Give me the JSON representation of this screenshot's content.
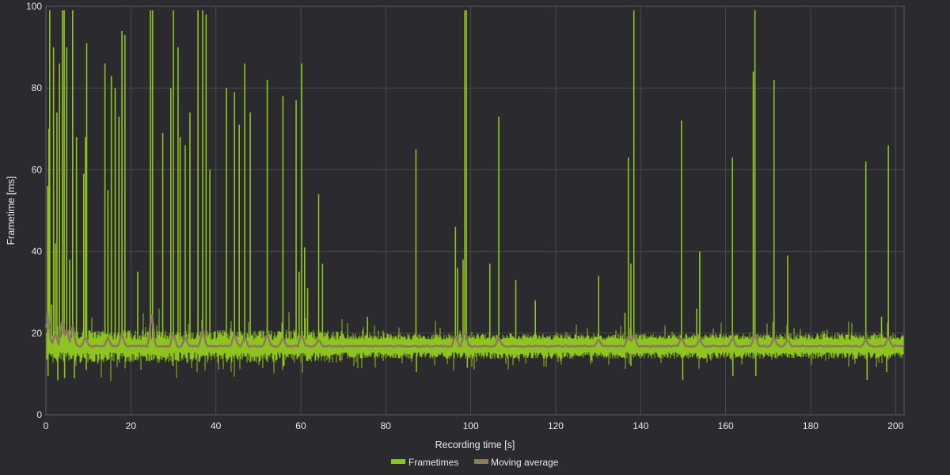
{
  "chart_data": {
    "type": "line",
    "xlabel": "Recording time [s]",
    "ylabel": "Frametime [ms]",
    "xlim": [
      0,
      202
    ],
    "ylim": [
      0,
      100
    ],
    "xticks": [
      0,
      20,
      40,
      60,
      80,
      100,
      120,
      140,
      160,
      180,
      200
    ],
    "yticks": [
      0,
      20,
      40,
      60,
      80,
      100
    ],
    "grid": true,
    "legend_position": "bottom-center",
    "colors": {
      "background": "#2b2b2f",
      "grid": "#4a4a4f",
      "frametimes": "#8fc31f",
      "moving_average": "#8b7a62",
      "text": "#e8e8e8"
    },
    "series": [
      {
        "name": "Frametimes",
        "baseline_ms": 16.8,
        "baseline_range_ms": [
          15.3,
          18.4
        ],
        "spikes": [
          {
            "x": 0.4,
            "y": 56
          },
          {
            "x": 0.7,
            "y": 70
          },
          {
            "x": 0.9,
            "y": 99
          },
          {
            "x": 1.3,
            "y": 27
          },
          {
            "x": 1.8,
            "y": 90
          },
          {
            "x": 2.2,
            "y": 42
          },
          {
            "x": 2.6,
            "y": 74
          },
          {
            "x": 3.2,
            "y": 86
          },
          {
            "x": 3.9,
            "y": 99
          },
          {
            "x": 4.3,
            "y": 99
          },
          {
            "x": 4.9,
            "y": 90
          },
          {
            "x": 5.6,
            "y": 38
          },
          {
            "x": 6.3,
            "y": 99
          },
          {
            "x": 7.2,
            "y": 68
          },
          {
            "x": 8.9,
            "y": 59
          },
          {
            "x": 9.3,
            "y": 68
          },
          {
            "x": 9.6,
            "y": 91
          },
          {
            "x": 13.9,
            "y": 86
          },
          {
            "x": 14.6,
            "y": 55
          },
          {
            "x": 15.4,
            "y": 83
          },
          {
            "x": 16.3,
            "y": 80
          },
          {
            "x": 17.2,
            "y": 73
          },
          {
            "x": 17.9,
            "y": 94
          },
          {
            "x": 18.6,
            "y": 93
          },
          {
            "x": 21.6,
            "y": 35
          },
          {
            "x": 24.6,
            "y": 99
          },
          {
            "x": 25.1,
            "y": 99
          },
          {
            "x": 27.5,
            "y": 69
          },
          {
            "x": 29.4,
            "y": 80
          },
          {
            "x": 30.0,
            "y": 99
          },
          {
            "x": 31.1,
            "y": 90
          },
          {
            "x": 31.6,
            "y": 68
          },
          {
            "x": 32.8,
            "y": 66
          },
          {
            "x": 33.9,
            "y": 74
          },
          {
            "x": 35.8,
            "y": 99
          },
          {
            "x": 36.9,
            "y": 99
          },
          {
            "x": 37.7,
            "y": 98
          },
          {
            "x": 38.6,
            "y": 60
          },
          {
            "x": 42.5,
            "y": 80
          },
          {
            "x": 44.4,
            "y": 79
          },
          {
            "x": 45.5,
            "y": 71
          },
          {
            "x": 46.8,
            "y": 86
          },
          {
            "x": 48.1,
            "y": 74
          },
          {
            "x": 52.1,
            "y": 82
          },
          {
            "x": 55.8,
            "y": 78
          },
          {
            "x": 58.9,
            "y": 77
          },
          {
            "x": 59.6,
            "y": 35
          },
          {
            "x": 60.2,
            "y": 86
          },
          {
            "x": 60.9,
            "y": 41
          },
          {
            "x": 61.6,
            "y": 31
          },
          {
            "x": 64.2,
            "y": 54
          },
          {
            "x": 65.1,
            "y": 37
          },
          {
            "x": 75.7,
            "y": 24
          },
          {
            "x": 87.1,
            "y": 65
          },
          {
            "x": 96.4,
            "y": 46
          },
          {
            "x": 96.9,
            "y": 36
          },
          {
            "x": 98.2,
            "y": 38
          },
          {
            "x": 98.6,
            "y": 99
          },
          {
            "x": 99.0,
            "y": 99
          },
          {
            "x": 104.5,
            "y": 37
          },
          {
            "x": 106.6,
            "y": 73
          },
          {
            "x": 110.6,
            "y": 33
          },
          {
            "x": 115.2,
            "y": 28
          },
          {
            "x": 130.1,
            "y": 34
          },
          {
            "x": 136.3,
            "y": 25
          },
          {
            "x": 137.1,
            "y": 63
          },
          {
            "x": 137.7,
            "y": 37
          },
          {
            "x": 138.4,
            "y": 99
          },
          {
            "x": 149.6,
            "y": 72
          },
          {
            "x": 153.2,
            "y": 26
          },
          {
            "x": 153.9,
            "y": 40
          },
          {
            "x": 161.6,
            "y": 63
          },
          {
            "x": 166.5,
            "y": 84
          },
          {
            "x": 166.9,
            "y": 99
          },
          {
            "x": 171.4,
            "y": 82
          },
          {
            "x": 174.6,
            "y": 39
          },
          {
            "x": 193.0,
            "y": 62
          },
          {
            "x": 196.7,
            "y": 24
          },
          {
            "x": 198.3,
            "y": 66
          }
        ],
        "dips": [
          {
            "x": 0.5,
            "y": 9.5
          },
          {
            "x": 2.8,
            "y": 8.5
          },
          {
            "x": 4.4,
            "y": 9
          },
          {
            "x": 6.7,
            "y": 9
          },
          {
            "x": 9.5,
            "y": 11
          },
          {
            "x": 29.9,
            "y": 12
          },
          {
            "x": 87.2,
            "y": 10.5
          },
          {
            "x": 99.2,
            "y": 11.5
          },
          {
            "x": 137.7,
            "y": 12
          },
          {
            "x": 149.9,
            "y": 8.5
          },
          {
            "x": 161.7,
            "y": 9.5
          },
          {
            "x": 167.1,
            "y": 9.5
          },
          {
            "x": 193.3,
            "y": 8.5
          },
          {
            "x": 197.9,
            "y": 10.5
          }
        ]
      },
      {
        "name": "Moving average",
        "values_ms": 16.8,
        "bumps": [
          {
            "x": 0.4,
            "y": 25
          },
          {
            "x": 1.3,
            "y": 17.5
          },
          {
            "x": 2.2,
            "y": 20
          },
          {
            "x": 3.9,
            "y": 24
          },
          {
            "x": 4.9,
            "y": 21
          },
          {
            "x": 6.3,
            "y": 22
          },
          {
            "x": 9.3,
            "y": 19
          },
          {
            "x": 14.6,
            "y": 19
          },
          {
            "x": 17.9,
            "y": 20
          },
          {
            "x": 24.9,
            "y": 25
          },
          {
            "x": 30.0,
            "y": 20
          },
          {
            "x": 32.8,
            "y": 19
          },
          {
            "x": 36.9,
            "y": 21
          },
          {
            "x": 44.4,
            "y": 20
          },
          {
            "x": 46.8,
            "y": 19
          },
          {
            "x": 52.1,
            "y": 20
          },
          {
            "x": 55.8,
            "y": 19
          },
          {
            "x": 60.2,
            "y": 20
          },
          {
            "x": 64.2,
            "y": 18.5
          },
          {
            "x": 96.4,
            "y": 19.5
          },
          {
            "x": 98.6,
            "y": 21
          },
          {
            "x": 106.6,
            "y": 19
          },
          {
            "x": 130.1,
            "y": 18.5
          },
          {
            "x": 137.1,
            "y": 19.5
          },
          {
            "x": 138.4,
            "y": 20
          },
          {
            "x": 149.6,
            "y": 19
          },
          {
            "x": 153.9,
            "y": 18.5
          },
          {
            "x": 161.6,
            "y": 19
          },
          {
            "x": 166.9,
            "y": 20
          },
          {
            "x": 171.4,
            "y": 19
          },
          {
            "x": 174.6,
            "y": 18.5
          },
          {
            "x": 193.0,
            "y": 18.5
          },
          {
            "x": 198.3,
            "y": 19
          }
        ]
      }
    ]
  }
}
